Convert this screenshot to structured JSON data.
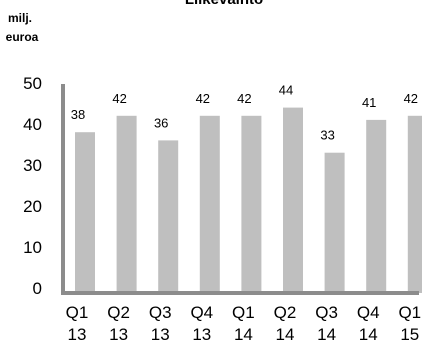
{
  "chart_data": {
    "type": "bar",
    "title": "Liikevaihto",
    "unit_label_line1": "milj.",
    "unit_label_line2": "euroa",
    "categories": [
      {
        "q": "Q1",
        "y": "13"
      },
      {
        "q": "Q2",
        "y": "13"
      },
      {
        "q": "Q3",
        "y": "13"
      },
      {
        "q": "Q4",
        "y": "13"
      },
      {
        "q": "Q1",
        "y": "14"
      },
      {
        "q": "Q2",
        "y": "14"
      },
      {
        "q": "Q3",
        "y": "14"
      },
      {
        "q": "Q4",
        "y": "14"
      },
      {
        "q": "Q1",
        "y": "15"
      }
    ],
    "values": [
      38,
      42,
      36,
      42,
      42,
      44,
      33,
      41,
      42
    ],
    "data_labels": [
      "38",
      "42",
      "36",
      "42",
      "42",
      "44",
      "33",
      "41",
      "42"
    ],
    "yticks": [
      "0",
      "10",
      "20",
      "30",
      "40",
      "50"
    ],
    "ylim": [
      0,
      50
    ],
    "bar_color": "#bfbfbf",
    "axis_color": "#8c8c8c",
    "grid": false,
    "legend": "none"
  }
}
